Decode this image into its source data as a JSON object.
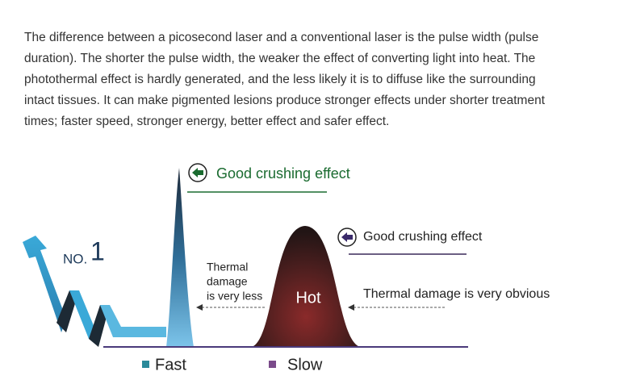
{
  "paragraph": {
    "lines": [
      "The difference between a picosecond laser and a conventional laser is the pulse width (pulse",
      "duration). The shorter the pulse width, the weaker the effect of converting light into heat. The",
      "photothermal effect is hardly generated, and the less likely it is to diffuse like the surrounding",
      "intact tissues. It can make pigmented lesions produce stronger effects under shorter treatment",
      "times; faster speed, stronger energy, better effect and safer effect."
    ]
  },
  "diagram": {
    "rank_prefix": "NO.",
    "rank": "1",
    "peak_label": "Good crushing effect",
    "hump_label": "Good crushing effect",
    "left_note": [
      "Thermal",
      "damage",
      "is very less"
    ],
    "hump_center": "Hot",
    "right_note": "Thermal damage is very obvious",
    "legend": [
      "Fast",
      "Slow"
    ]
  }
}
